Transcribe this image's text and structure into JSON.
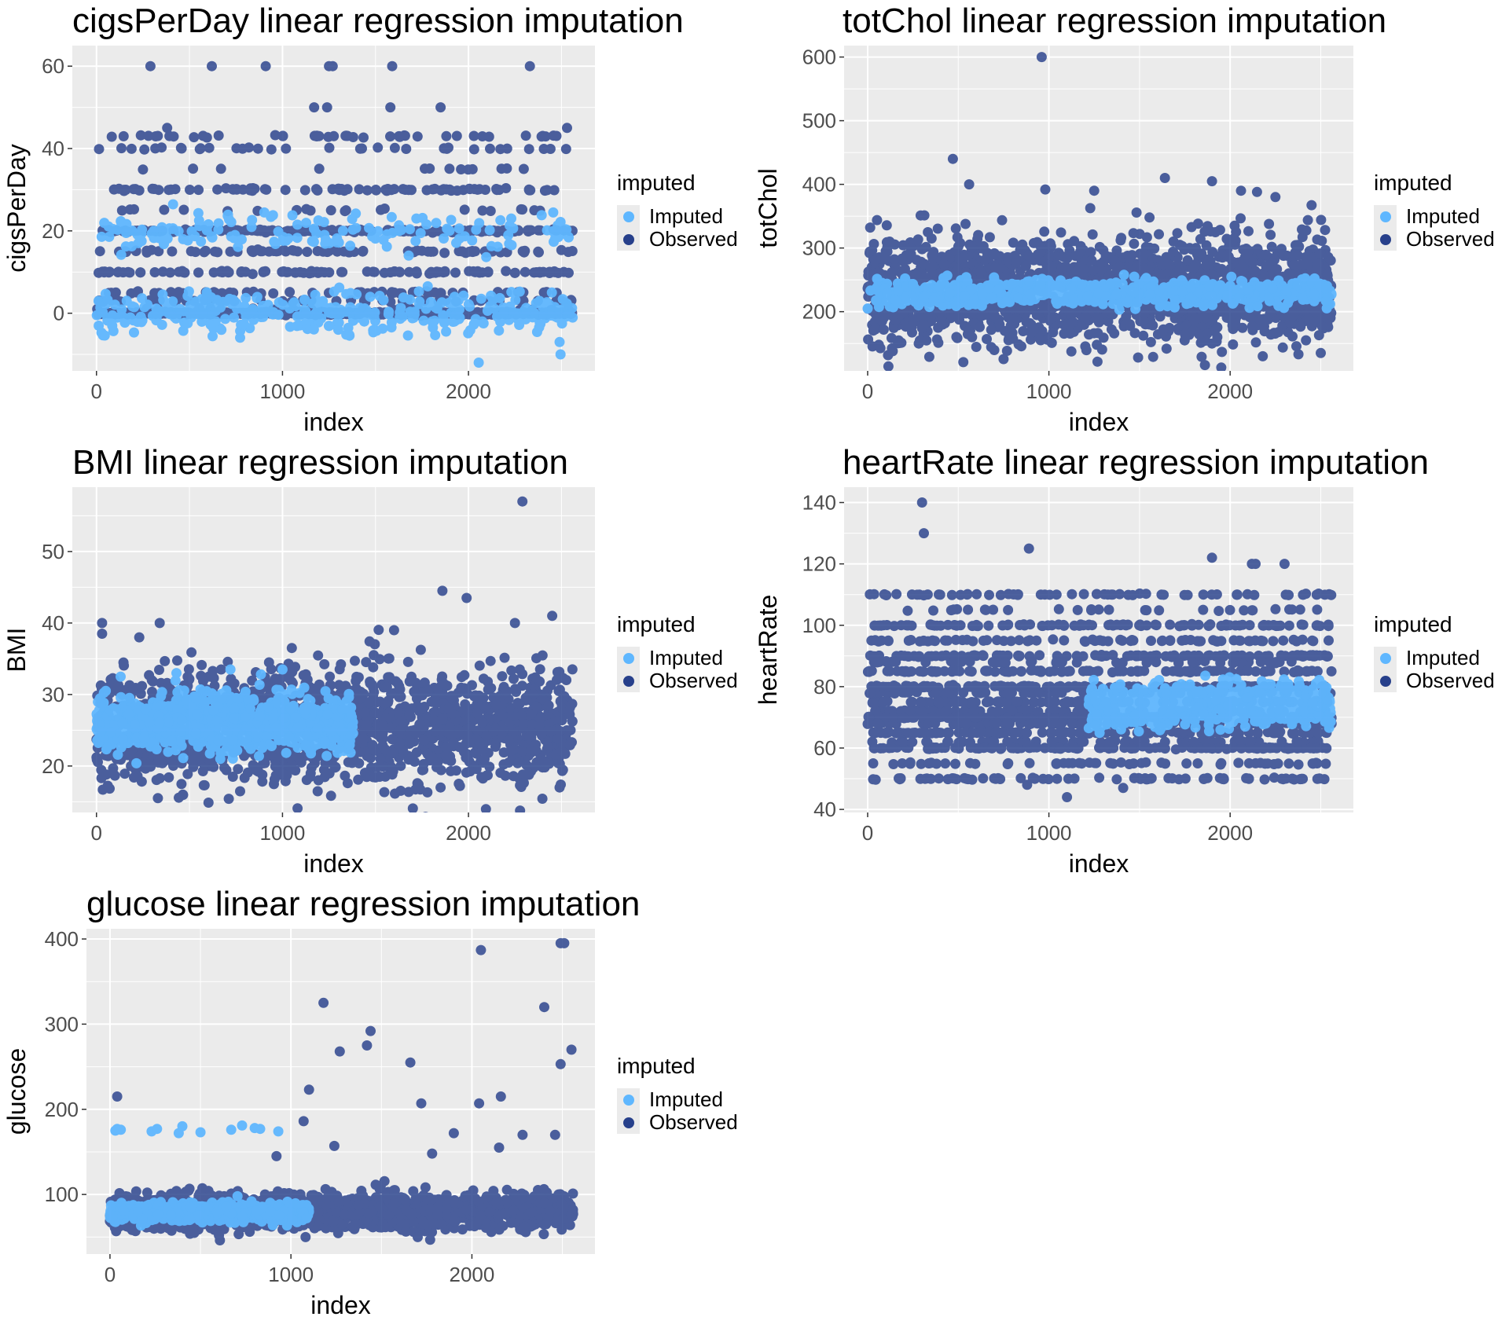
{
  "colors": {
    "imputed": "#5fb7ff",
    "observed": "#27408b",
    "panel": "#ebebeb",
    "grid": "#ffffff"
  },
  "chart_data": [
    {
      "type": "scatter",
      "id": "cigsPerDay",
      "title": "cigsPerDay linear regression imputation",
      "xlabel": "index",
      "ylabel": "cigsPerDay",
      "xlim": [
        -130,
        2680
      ],
      "ylim": [
        -14,
        65
      ],
      "xticks": [
        0,
        1000,
        2000
      ],
      "xtick_labels": [
        "0",
        "1000",
        "2000"
      ],
      "yticks": [
        0,
        20,
        40,
        60
      ],
      "ytick_labels": [
        "0",
        "20",
        "40",
        "60"
      ],
      "legend": {
        "title": "imputed",
        "entries": [
          "Imputed",
          "Observed"
        ],
        "placement": "right"
      },
      "grid": true,
      "series": [
        {
          "name": "Imputed",
          "points_generated_from": {
            "n": 520,
            "xmin": 0,
            "xmax": 2560,
            "clusters": [
              {
                "center": 0,
                "spread": 2.5,
                "weight": 0.7
              },
              {
                "center": 20,
                "spread": 2.5,
                "weight": 0.3
              }
            ]
          },
          "outliers": [
            [
              2055,
              -12
            ],
            [
              2495,
              -10
            ],
            [
              2490,
              -7
            ],
            [
              1300,
              -4
            ],
            [
              1720,
              23
            ],
            [
              2230,
              23
            ]
          ]
        },
        {
          "name": "Observed",
          "levels": [
            0,
            1,
            3,
            5,
            10,
            15,
            20,
            25,
            30,
            35,
            40,
            43
          ],
          "level_weights": [
            0.5,
            0.02,
            0.04,
            0.05,
            0.08,
            0.06,
            0.14,
            0.02,
            0.06,
            0.01,
            0.02,
            0.04
          ],
          "n": 1300,
          "xmin": 0,
          "xmax": 2560,
          "outliers": [
            [
              290,
              60
            ],
            [
              620,
              60
            ],
            [
              910,
              60
            ],
            [
              1250,
              60
            ],
            [
              1270,
              60
            ],
            [
              1590,
              60
            ],
            [
              2330,
              60
            ],
            [
              1170,
              50
            ],
            [
              1240,
              50
            ],
            [
              1580,
              50
            ],
            [
              1850,
              50
            ],
            [
              380,
              45
            ],
            [
              2530,
              45
            ]
          ]
        }
      ]
    },
    {
      "type": "scatter",
      "id": "totChol",
      "title": "totChol linear regression imputation",
      "xlabel": "index",
      "ylabel": "totChol",
      "xlim": [
        -130,
        2680
      ],
      "ylim": [
        107,
        618
      ],
      "xticks": [
        0,
        1000,
        2000
      ],
      "xtick_labels": [
        "0",
        "1000",
        "2000"
      ],
      "yticks": [
        200,
        300,
        400,
        500,
        600
      ],
      "ytick_labels": [
        "200",
        "300",
        "400",
        "500",
        "600"
      ],
      "legend": {
        "title": "imputed",
        "entries": [
          "Imputed",
          "Observed"
        ],
        "placement": "right"
      },
      "grid": true,
      "series": [
        {
          "name": "Imputed",
          "points_generated_from": {
            "n": 700,
            "xmin": 0,
            "xmax": 2560,
            "center": 230,
            "spread": 10
          }
        },
        {
          "name": "Observed",
          "points_generated_from": {
            "n": 1900,
            "xmin": 0,
            "xmax": 2560,
            "center": 235,
            "spread": 40
          },
          "outliers": [
            [
              960,
              600
            ],
            [
              470,
              440
            ],
            [
              1640,
              410
            ],
            [
              1900,
              405
            ],
            [
              560,
              400
            ],
            [
              1250,
              390
            ],
            [
              2060,
              390
            ],
            [
              980,
              392
            ],
            [
              2250,
              380
            ],
            [
              2180,
              130
            ],
            [
              2500,
              135
            ],
            [
              1900,
              150
            ]
          ]
        }
      ]
    },
    {
      "type": "scatter",
      "id": "BMI",
      "title": "BMI linear regression imputation",
      "xlabel": "index",
      "ylabel": "BMI",
      "xlim": [
        -130,
        2680
      ],
      "ylim": [
        13.5,
        59
      ],
      "xticks": [
        0,
        1000,
        2000
      ],
      "xtick_labels": [
        "0",
        "1000",
        "2000"
      ],
      "yticks": [
        20,
        30,
        40,
        50
      ],
      "ytick_labels": [
        "20",
        "30",
        "40",
        "50"
      ],
      "legend": {
        "title": "imputed",
        "entries": [
          "Imputed",
          "Observed"
        ],
        "placement": "right"
      },
      "grid": true,
      "series": [
        {
          "name": "Imputed",
          "points_generated_from": {
            "n": 1100,
            "xmin": 0,
            "xmax": 1380,
            "center": 26,
            "spread": 1.8
          },
          "outliers": [
            [
              1000,
              33.5
            ],
            [
              430,
              33
            ],
            [
              720,
              33.5
            ],
            [
              130,
              32.5
            ],
            [
              50,
              30.5
            ]
          ]
        },
        {
          "name": "Observed",
          "points_generated_from": {
            "n": 1900,
            "xmin": 0,
            "xmax": 2560,
            "center": 25.5,
            "spread": 3.8
          },
          "outliers": [
            [
              2290,
              57
            ],
            [
              1860,
              44.5
            ],
            [
              1990,
              43.5
            ],
            [
              30,
              40
            ],
            [
              30,
              38.5
            ],
            [
              340,
              40
            ],
            [
              2450,
              41
            ],
            [
              2250,
              40
            ],
            [
              1050,
              36.5
            ],
            [
              1600,
              39
            ],
            [
              230,
              38
            ],
            [
              330,
              15.5
            ],
            [
              2490,
              17
            ],
            [
              1850,
              17
            ]
          ]
        }
      ]
    },
    {
      "type": "scatter",
      "id": "heartRate",
      "title": "heartRate linear regression imputation",
      "xlabel": "index",
      "ylabel": "heartRate",
      "xlim": [
        -130,
        2680
      ],
      "ylim": [
        39,
        145
      ],
      "xticks": [
        0,
        1000,
        2000
      ],
      "xtick_labels": [
        "0",
        "1000",
        "2000"
      ],
      "yticks": [
        40,
        60,
        80,
        100,
        120,
        140
      ],
      "ytick_labels": [
        "40",
        "60",
        "80",
        "100",
        "120",
        "140"
      ],
      "legend": {
        "title": "imputed",
        "entries": [
          "Imputed",
          "Observed"
        ],
        "placement": "right"
      },
      "grid": true,
      "series": [
        {
          "name": "Imputed",
          "points_generated_from": {
            "n": 900,
            "xmin": 1220,
            "xmax": 2560,
            "center": 74,
            "spread": 3
          }
        },
        {
          "name": "Observed",
          "levels": [
            50,
            55,
            60,
            62,
            65,
            68,
            70,
            72,
            75,
            78,
            80,
            85,
            88,
            90,
            95,
            100,
            105,
            110
          ],
          "level_weights": [
            0.03,
            0.03,
            0.07,
            0.04,
            0.07,
            0.06,
            0.09,
            0.07,
            0.09,
            0.05,
            0.09,
            0.07,
            0.03,
            0.06,
            0.04,
            0.06,
            0.02,
            0.03
          ],
          "n": 1900,
          "xmin": 0,
          "xmax": 2560,
          "outliers": [
            [
              300,
              140
            ],
            [
              310,
              130
            ],
            [
              890,
              125
            ],
            [
              1900,
              122
            ],
            [
              2120,
              120
            ],
            [
              2140,
              120
            ],
            [
              2300,
              120
            ],
            [
              1100,
              44
            ],
            [
              880,
              48
            ],
            [
              1410,
              47
            ]
          ]
        }
      ]
    },
    {
      "type": "scatter",
      "id": "glucose",
      "title": "glucose linear regression imputation",
      "xlabel": "index",
      "ylabel": "glucose",
      "xlim": [
        -130,
        2680
      ],
      "ylim": [
        30,
        412
      ],
      "xticks": [
        0,
        1000,
        2000
      ],
      "xtick_labels": [
        "0",
        "1000",
        "2000"
      ],
      "yticks": [
        100,
        200,
        300,
        400
      ],
      "ytick_labels": [
        "100",
        "200",
        "300",
        "400"
      ],
      "legend": {
        "title": "imputed",
        "entries": [
          "Imputed",
          "Observed"
        ],
        "placement": "right"
      },
      "grid": true,
      "series": [
        {
          "name": "Imputed",
          "points_generated_from": {
            "n": 800,
            "xmin": 0,
            "xmax": 1100,
            "center": 79,
            "spread": 5
          },
          "outliers": [
            [
              30,
              175
            ],
            [
              40,
              177
            ],
            [
              60,
              176
            ],
            [
              230,
              174
            ],
            [
              260,
              177
            ],
            [
              400,
              180
            ],
            [
              380,
              172
            ],
            [
              500,
              173
            ],
            [
              670,
              176
            ],
            [
              730,
              181
            ],
            [
              800,
              178
            ],
            [
              830,
              177
            ],
            [
              930,
              174
            ]
          ]
        },
        {
          "name": "Observed",
          "points_generated_from": {
            "n": 1900,
            "xmin": 0,
            "xmax": 2560,
            "center": 80,
            "spread": 10
          },
          "outliers": [
            [
              2490,
              395
            ],
            [
              2510,
              395
            ],
            [
              2050,
              387
            ],
            [
              1180,
              325
            ],
            [
              2400,
              320
            ],
            [
              1440,
              292
            ],
            [
              1420,
              275
            ],
            [
              1270,
              268
            ],
            [
              2550,
              270
            ],
            [
              2490,
              253
            ],
            [
              1660,
              255
            ],
            [
              1100,
              223
            ],
            [
              2160,
              215
            ],
            [
              40,
              215
            ],
            [
              1720,
              207
            ],
            [
              2040,
              207
            ],
            [
              1070,
              186
            ],
            [
              1900,
              172
            ],
            [
              2460,
              170
            ],
            [
              2280,
              170
            ],
            [
              1240,
              157
            ],
            [
              2150,
              155
            ],
            [
              1780,
              148
            ],
            [
              920,
              145
            ]
          ]
        }
      ]
    }
  ]
}
